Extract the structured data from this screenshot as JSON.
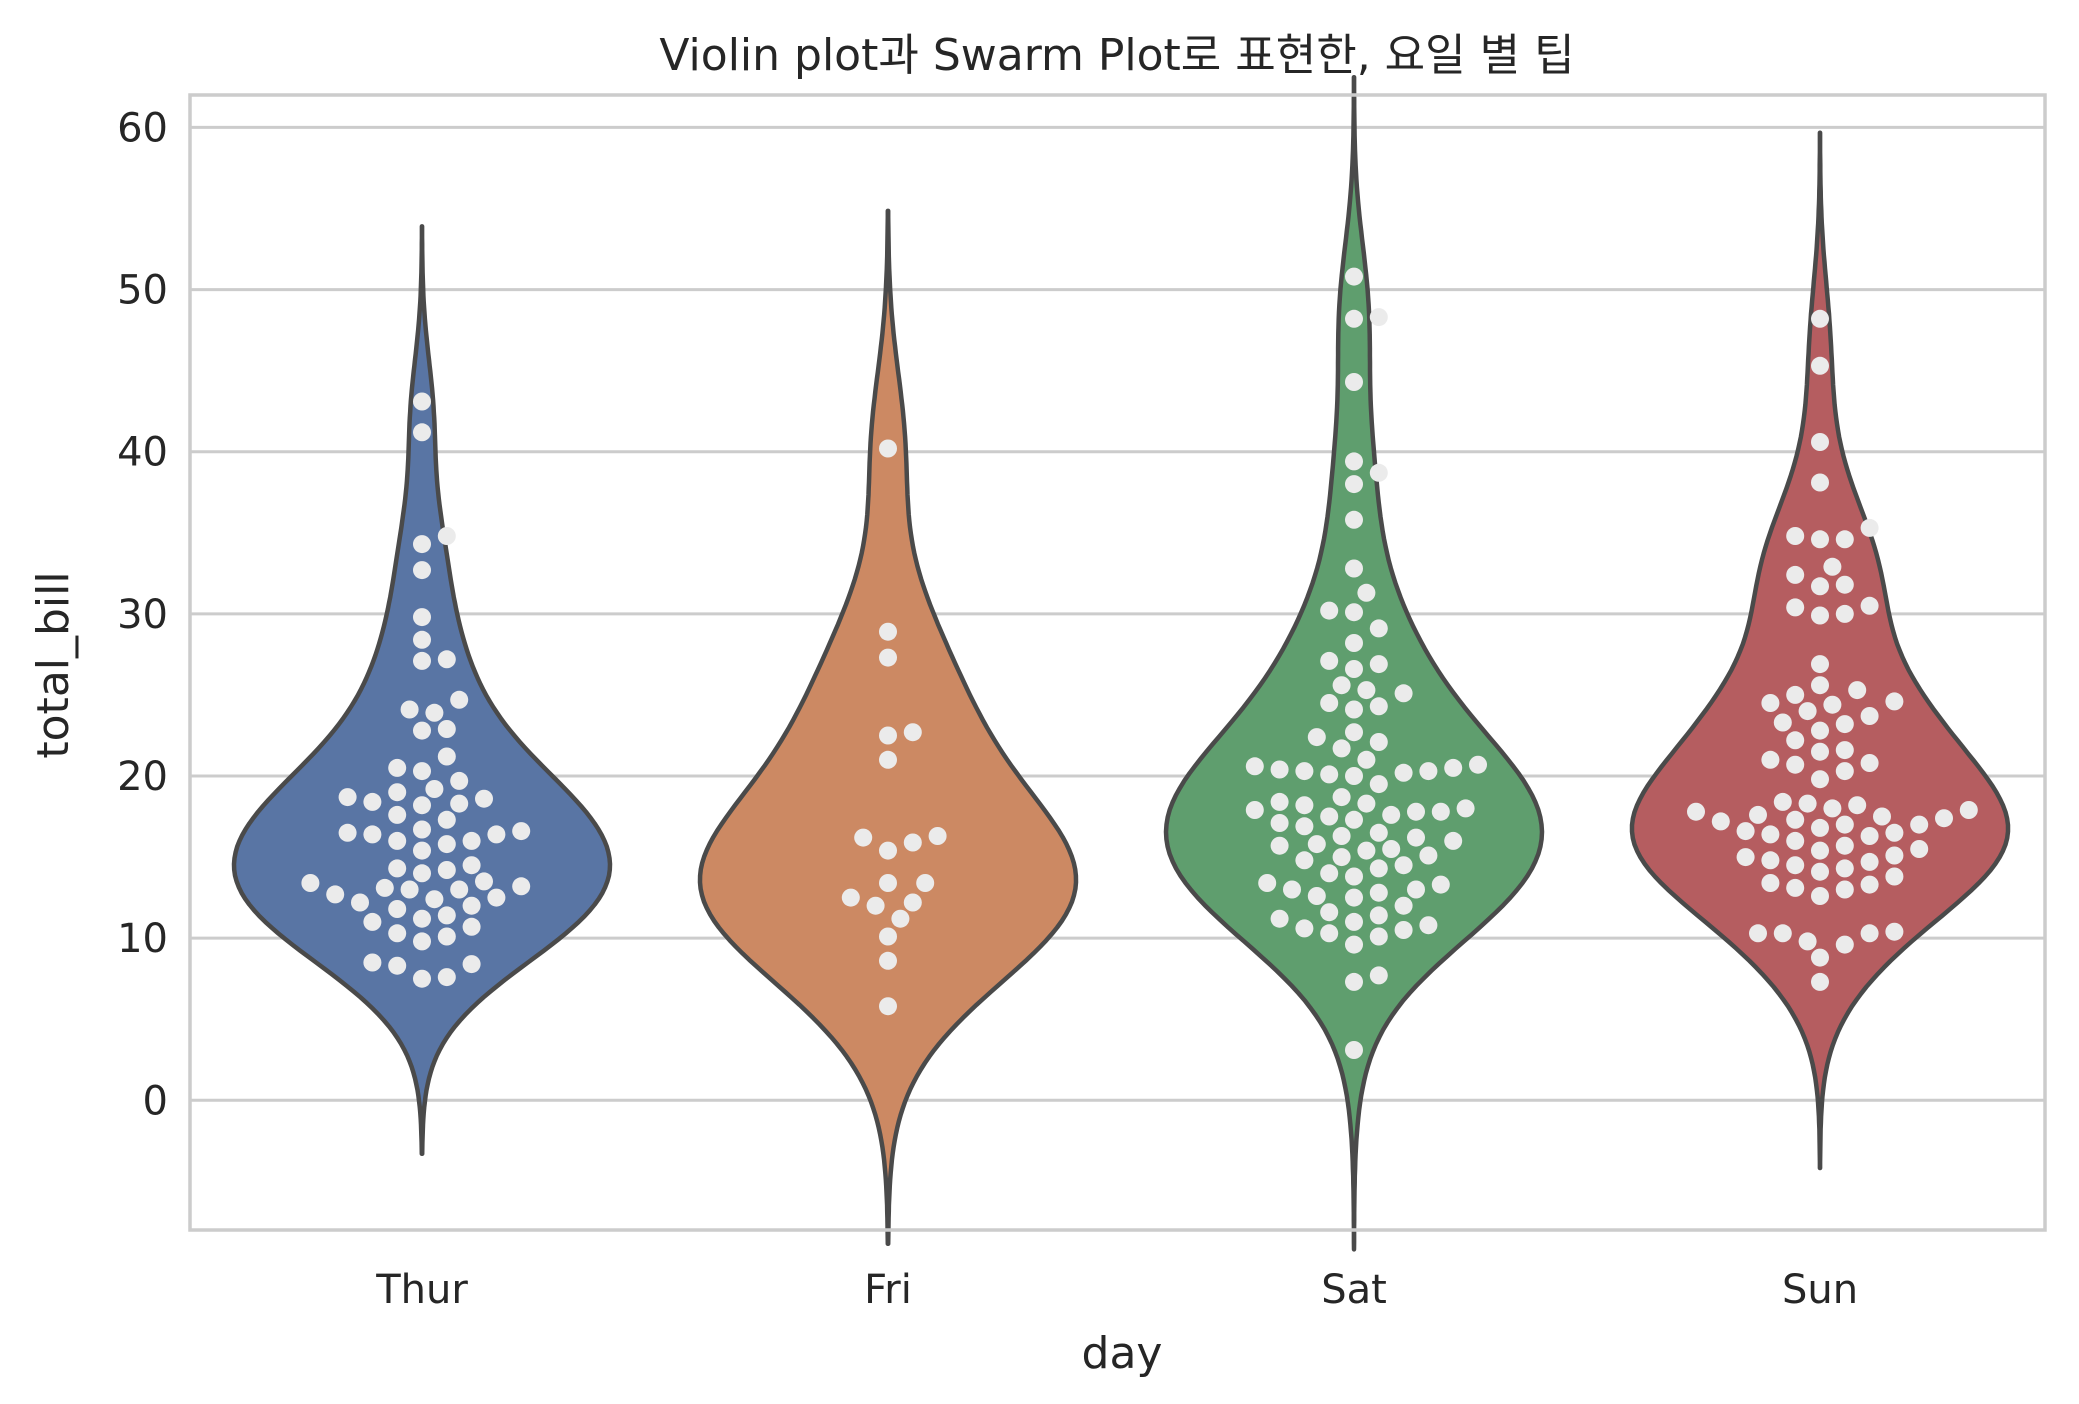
{
  "chart_data": {
    "type": "violin",
    "title": "Violin plot과 Swarm Plot로 표현한, 요일 별 팁",
    "xlabel": "day",
    "ylabel": "total_bill",
    "ylim": [
      -8,
      62
    ],
    "yticks": [
      0,
      10,
      20,
      30,
      40,
      50,
      60
    ],
    "grid": "horizontal",
    "categories": [
      "Thur",
      "Fri",
      "Sat",
      "Sun"
    ],
    "colors": {
      "Thur": "#5975a4",
      "Fri": "#cc8963",
      "Sat": "#5f9e6e",
      "Sun": "#b55d60",
      "dots": "#ebebeb",
      "outline": "#4a4a4a",
      "grid": "#cccccc"
    },
    "series": [
      {
        "category": "Thur",
        "values": [
          7.5,
          7.6,
          8.3,
          8.4,
          8.5,
          9.8,
          10.1,
          10.3,
          10.7,
          11.0,
          11.2,
          11.4,
          11.8,
          12.0,
          12.2,
          12.4,
          12.5,
          12.7,
          13.0,
          13.0,
          13.1,
          13.2,
          13.4,
          13.5,
          14.0,
          14.2,
          14.3,
          14.5,
          15.4,
          15.8,
          16.0,
          16.0,
          16.4,
          16.4,
          16.5,
          16.6,
          16.7,
          17.3,
          17.6,
          18.2,
          18.3,
          18.4,
          18.6,
          18.7,
          19.0,
          19.2,
          19.7,
          20.3,
          20.5,
          21.2,
          22.8,
          22.9,
          23.9,
          24.1,
          24.7,
          27.1,
          27.2,
          28.4,
          29.8,
          32.7,
          34.3,
          34.8,
          41.2,
          43.1
        ]
      },
      {
        "category": "Fri",
        "values": [
          5.8,
          8.6,
          10.1,
          11.2,
          12.0,
          12.2,
          12.5,
          13.4,
          13.4,
          15.4,
          15.9,
          16.2,
          16.3,
          21.0,
          22.5,
          22.7,
          27.3,
          28.9,
          40.2
        ]
      },
      {
        "category": "Sat",
        "values": [
          3.1,
          7.3,
          7.7,
          9.6,
          10.1,
          10.3,
          10.5,
          10.6,
          10.8,
          11.0,
          11.2,
          11.4,
          11.6,
          12.0,
          12.5,
          12.6,
          12.8,
          13.0,
          13.0,
          13.3,
          13.4,
          13.8,
          14.0,
          14.3,
          14.5,
          14.8,
          15.0,
          15.1,
          15.4,
          15.5,
          15.7,
          15.8,
          16.0,
          16.2,
          16.3,
          16.5,
          16.9,
          17.1,
          17.3,
          17.5,
          17.6,
          17.8,
          17.8,
          17.9,
          18.0,
          18.2,
          18.3,
          18.4,
          18.7,
          19.5,
          20.0,
          20.1,
          20.2,
          20.3,
          20.3,
          20.4,
          20.5,
          20.6,
          20.7,
          21.0,
          21.7,
          22.1,
          22.4,
          22.7,
          24.1,
          24.3,
          24.5,
          25.1,
          25.3,
          25.6,
          26.6,
          26.9,
          27.1,
          28.2,
          29.1,
          30.1,
          30.2,
          31.3,
          32.8,
          35.8,
          38.0,
          38.7,
          39.4,
          44.3,
          48.2,
          48.3,
          50.8
        ]
      },
      {
        "category": "Sun",
        "values": [
          7.3,
          8.8,
          9.6,
          9.8,
          10.3,
          10.3,
          10.3,
          10.4,
          12.6,
          13.0,
          13.1,
          13.3,
          13.4,
          13.8,
          14.1,
          14.3,
          14.5,
          14.7,
          14.8,
          15.0,
          15.1,
          15.4,
          15.5,
          15.7,
          16.0,
          16.3,
          16.4,
          16.5,
          16.6,
          16.8,
          17.0,
          17.0,
          17.2,
          17.3,
          17.4,
          17.5,
          17.6,
          17.8,
          17.9,
          18.0,
          18.2,
          18.3,
          18.4,
          19.8,
          20.3,
          20.7,
          20.8,
          21.0,
          21.5,
          21.6,
          22.2,
          22.8,
          23.2,
          23.3,
          23.7,
          24.0,
          24.4,
          24.5,
          24.6,
          25.0,
          25.3,
          25.6,
          26.9,
          29.9,
          30.0,
          30.4,
          30.5,
          31.7,
          31.8,
          32.4,
          32.9,
          34.6,
          34.6,
          34.8,
          35.3,
          38.1,
          40.6,
          45.3,
          48.2
        ]
      }
    ]
  }
}
